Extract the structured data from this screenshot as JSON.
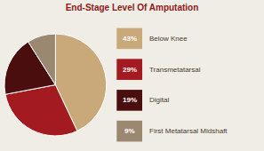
{
  "chart_data": {
    "type": "pie",
    "title": "End-Stage Level Of Amputation",
    "categories": [
      "Below Knee",
      "Transmetatarsal",
      "Digital",
      "First Metatarsal Midshaft"
    ],
    "values": [
      43,
      29,
      19,
      9
    ],
    "value_labels": [
      "43%",
      "29%",
      "19%",
      "9%"
    ],
    "colors": [
      "#C9A87A",
      "#A31B20",
      "#4A0E0E",
      "#9B8870"
    ],
    "legend": "right"
  }
}
